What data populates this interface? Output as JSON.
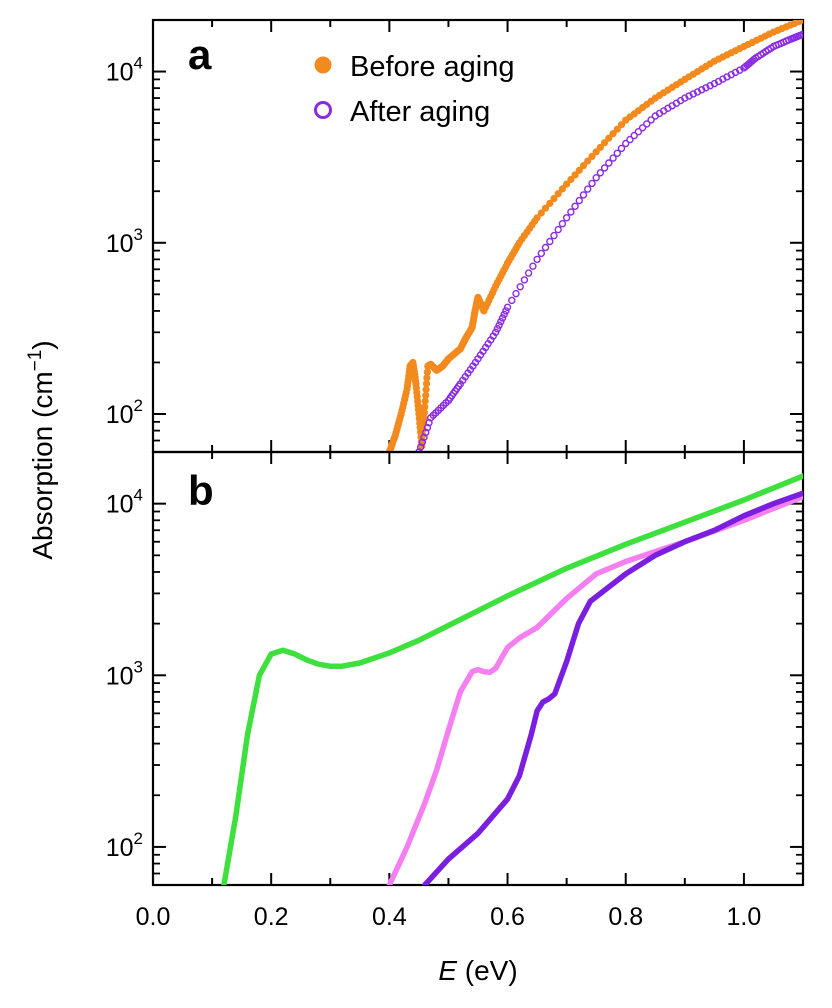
{
  "figure": {
    "ylabel_main": "Absorption (cm",
    "ylabel_sup": "−1",
    "ylabel_close": ")",
    "xlabel_var": "E",
    "xlabel_unit": " (eV)"
  },
  "colors": {
    "before": "#f28a1e",
    "after": "#8a2be2",
    "green": "#3ee03e",
    "pink": "#f47ff0",
    "purple": "#7a1fe0"
  },
  "chart_data": [
    {
      "panel_label": "a",
      "type": "scatter",
      "scale": "log",
      "xlim": [
        0.0,
        1.1
      ],
      "ylim": [
        60,
        20000
      ],
      "xticks": [
        0.0,
        0.2,
        0.4,
        0.6,
        0.8,
        1.0
      ],
      "yticks": [
        {
          "value": 100,
          "base": "10",
          "exp": "2"
        },
        {
          "value": 1000,
          "base": "10",
          "exp": "3"
        },
        {
          "value": 10000,
          "base": "10",
          "exp": "4"
        }
      ],
      "legend_position": "top",
      "series": [
        {
          "name": "Before aging",
          "marker": "filled-circle",
          "color": "#f28a1e",
          "x": [
            0.4,
            0.41,
            0.42,
            0.43,
            0.435,
            0.44,
            0.445,
            0.45,
            0.455,
            0.46,
            0.465,
            0.47,
            0.48,
            0.49,
            0.5,
            0.52,
            0.53,
            0.54,
            0.545,
            0.55,
            0.56,
            0.58,
            0.6,
            0.62,
            0.65,
            0.7,
            0.75,
            0.8,
            0.85,
            0.9,
            0.95,
            1.0,
            1.05,
            1.1
          ],
          "y": [
            60,
            75,
            100,
            140,
            190,
            200,
            150,
            100,
            65,
            110,
            190,
            195,
            180,
            190,
            210,
            240,
            280,
            320,
            400,
            480,
            400,
            560,
            760,
            1000,
            1400,
            2200,
            3400,
            5200,
            7000,
            9000,
            11500,
            14000,
            17000,
            20000
          ]
        },
        {
          "name": "After aging",
          "marker": "open-circle",
          "color": "#8a2be2",
          "x": [
            0.45,
            0.47,
            0.5,
            0.52,
            0.55,
            0.58,
            0.6,
            0.65,
            0.7,
            0.75,
            0.8,
            0.85,
            0.9,
            0.95,
            1.0,
            1.02,
            1.05,
            1.08,
            1.1
          ],
          "y": [
            60,
            95,
            120,
            150,
            210,
            300,
            420,
            800,
            1400,
            2400,
            3800,
            5500,
            7000,
            8500,
            10500,
            12000,
            14000,
            15500,
            16500
          ]
        }
      ]
    },
    {
      "panel_label": "b",
      "type": "line",
      "scale": "log",
      "xlim": [
        0.0,
        1.1
      ],
      "ylim": [
        60,
        20000
      ],
      "xticks": [
        0.0,
        0.2,
        0.4,
        0.6,
        0.8,
        1.0
      ],
      "yticks": [
        {
          "value": 100,
          "base": "10",
          "exp": "2"
        },
        {
          "value": 1000,
          "base": "10",
          "exp": "3"
        },
        {
          "value": 10000,
          "base": "10",
          "exp": "4"
        }
      ],
      "series": [
        {
          "color": "#3ee03e",
          "x": [
            0.12,
            0.14,
            0.16,
            0.18,
            0.2,
            0.22,
            0.24,
            0.26,
            0.28,
            0.3,
            0.32,
            0.35,
            0.4,
            0.45,
            0.5,
            0.6,
            0.7,
            0.8,
            0.9,
            1.0,
            1.1
          ],
          "y": [
            60,
            150,
            450,
            1000,
            1330,
            1400,
            1330,
            1230,
            1160,
            1130,
            1130,
            1180,
            1350,
            1600,
            1950,
            2900,
            4200,
            5800,
            7800,
            10500,
            14500
          ]
        },
        {
          "color": "#f47ff0",
          "x": [
            0.4,
            0.43,
            0.46,
            0.48,
            0.5,
            0.52,
            0.54,
            0.55,
            0.56,
            0.57,
            0.58,
            0.6,
            0.62,
            0.65,
            0.7,
            0.75,
            0.8,
            0.9,
            1.0,
            1.1
          ],
          "y": [
            60,
            100,
            180,
            280,
            480,
            800,
            1050,
            1080,
            1050,
            1040,
            1100,
            1450,
            1650,
            1900,
            2800,
            3900,
            4600,
            6000,
            8000,
            11000
          ]
        },
        {
          "color": "#7a1fe0",
          "x": [
            0.46,
            0.5,
            0.55,
            0.6,
            0.62,
            0.64,
            0.65,
            0.66,
            0.67,
            0.68,
            0.7,
            0.72,
            0.74,
            0.8,
            0.85,
            0.9,
            0.95,
            1.0,
            1.05,
            1.1
          ],
          "y": [
            60,
            85,
            120,
            190,
            260,
            450,
            620,
            700,
            730,
            780,
            1200,
            2000,
            2700,
            3900,
            5000,
            6000,
            7000,
            8500,
            10000,
            11500
          ]
        }
      ]
    }
  ],
  "legend": [
    {
      "label": "Before aging"
    },
    {
      "label": "After aging"
    }
  ]
}
